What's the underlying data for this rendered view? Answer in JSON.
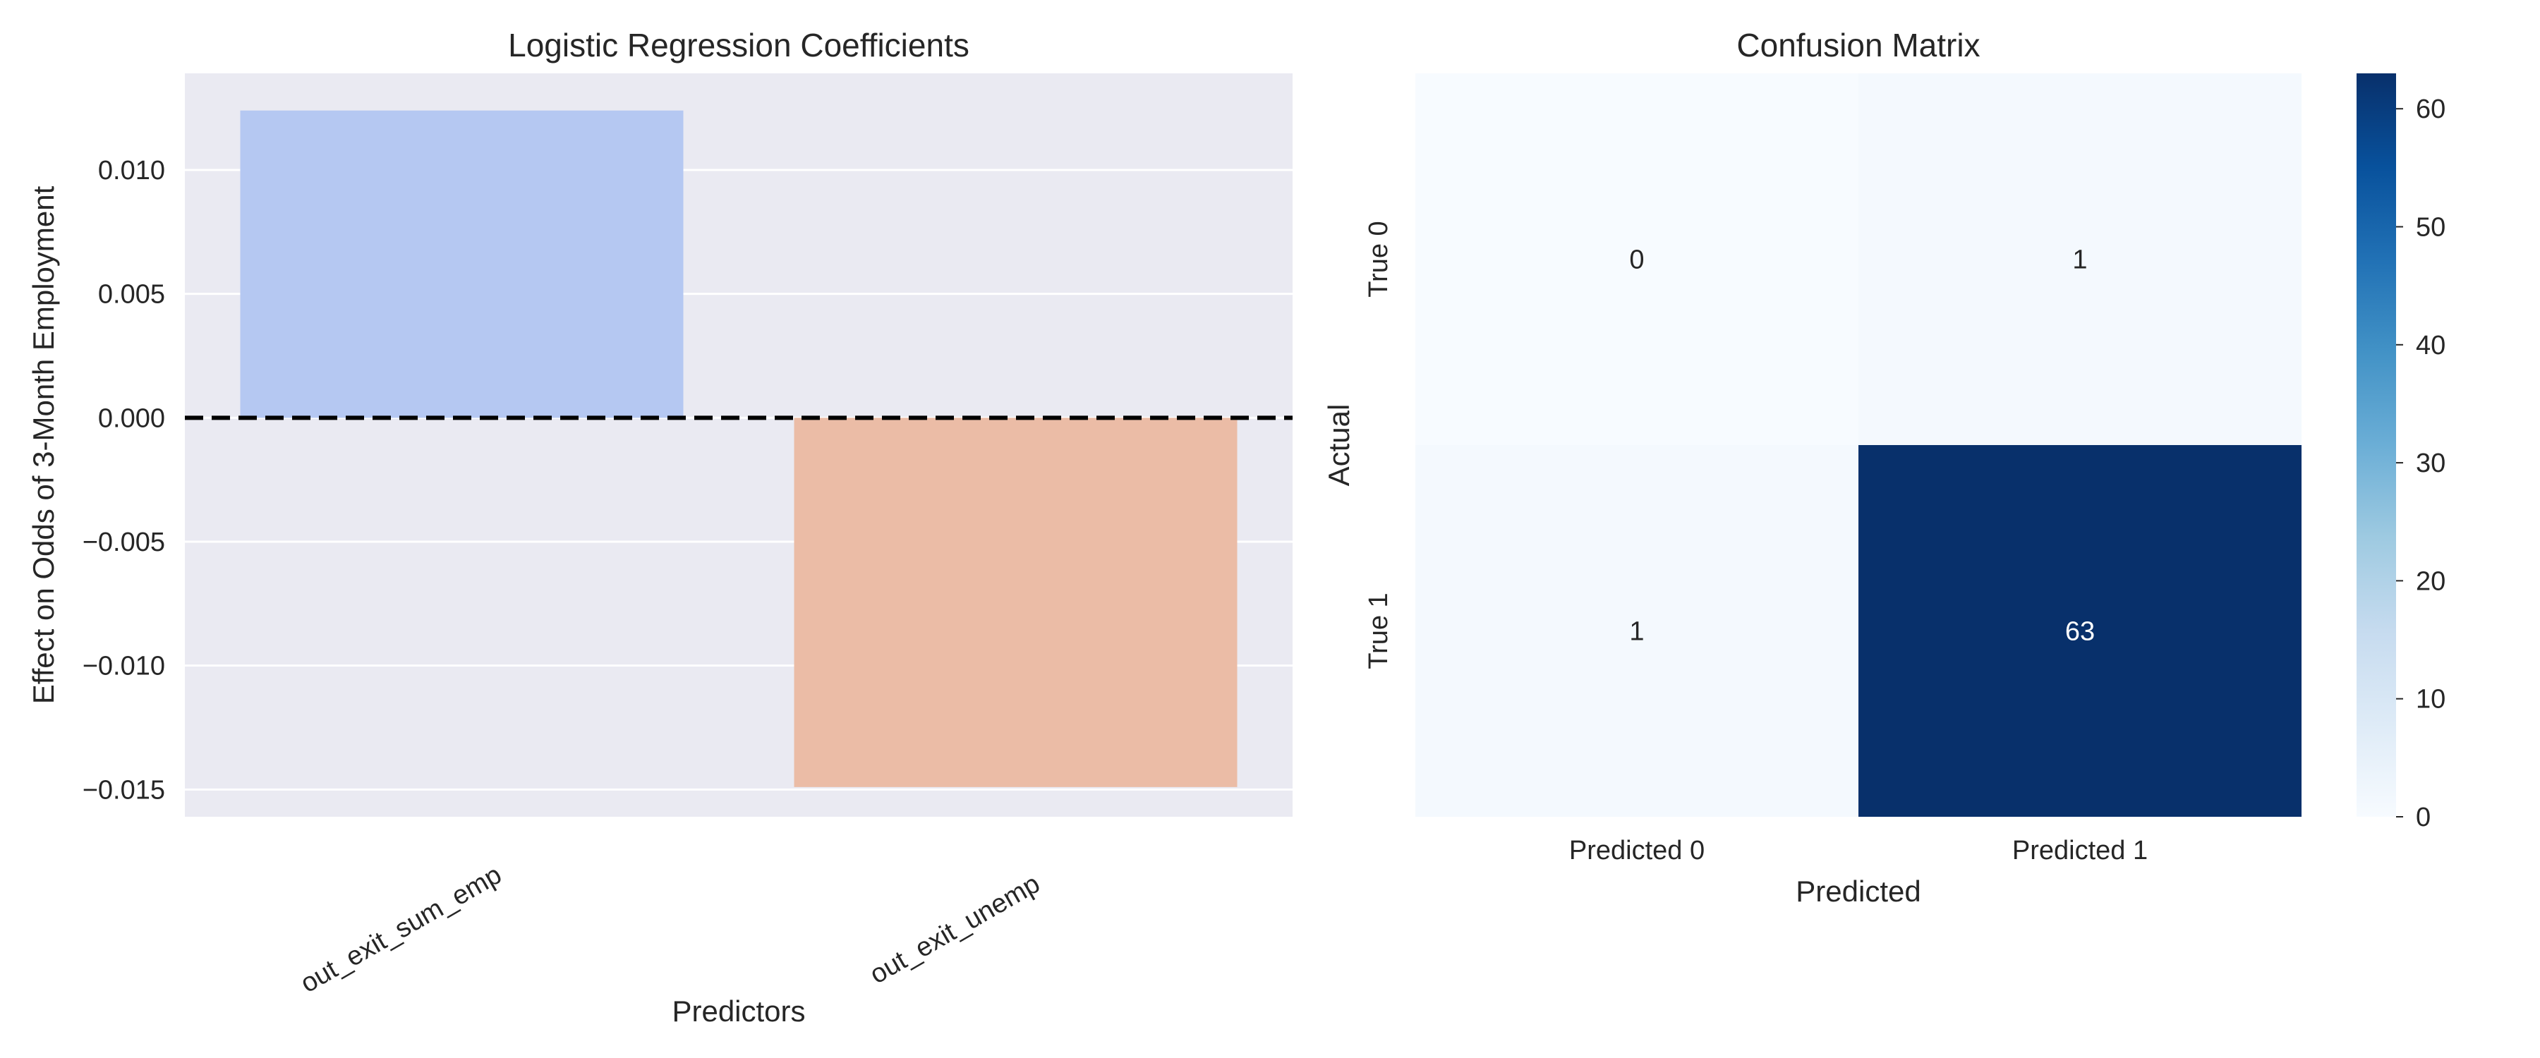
{
  "chart_data": [
    {
      "type": "bar",
      "title": "Logistic Regression Coefficients",
      "xlabel": "Predictors",
      "ylabel": "Effect on Odds of 3-Month Employment",
      "categories": [
        "out_exit_sum_emp",
        "out_exit_unemp"
      ],
      "values": [
        0.0124,
        -0.0149
      ],
      "colors": [
        "#b5c8f2",
        "#ebbca6"
      ],
      "ylim": [
        -0.0161,
        0.0139
      ],
      "yticks": [
        0.01,
        0.005,
        0.0,
        -0.005,
        -0.01,
        -0.015
      ],
      "ytick_labels": [
        "0.010",
        "0.005",
        "0.000",
        "−0.005",
        "−0.010",
        "−0.015"
      ],
      "reference_line": 0,
      "grid": true,
      "background": "#eaeaf2"
    },
    {
      "type": "heatmap",
      "title": "Confusion Matrix",
      "xlabel": "Predicted",
      "ylabel": "Actual",
      "x_categories": [
        "Predicted 0",
        "Predicted 1"
      ],
      "y_categories": [
        "True 0",
        "True 1"
      ],
      "values": [
        [
          0,
          1
        ],
        [
          1,
          63
        ]
      ],
      "colormap": "Blues",
      "colorbar": {
        "min": 0,
        "max": 63,
        "ticks": [
          0,
          10,
          20,
          30,
          40,
          50,
          60
        ],
        "tick_labels": [
          "0",
          "10",
          "20",
          "30",
          "40",
          "50",
          "60"
        ]
      }
    }
  ]
}
